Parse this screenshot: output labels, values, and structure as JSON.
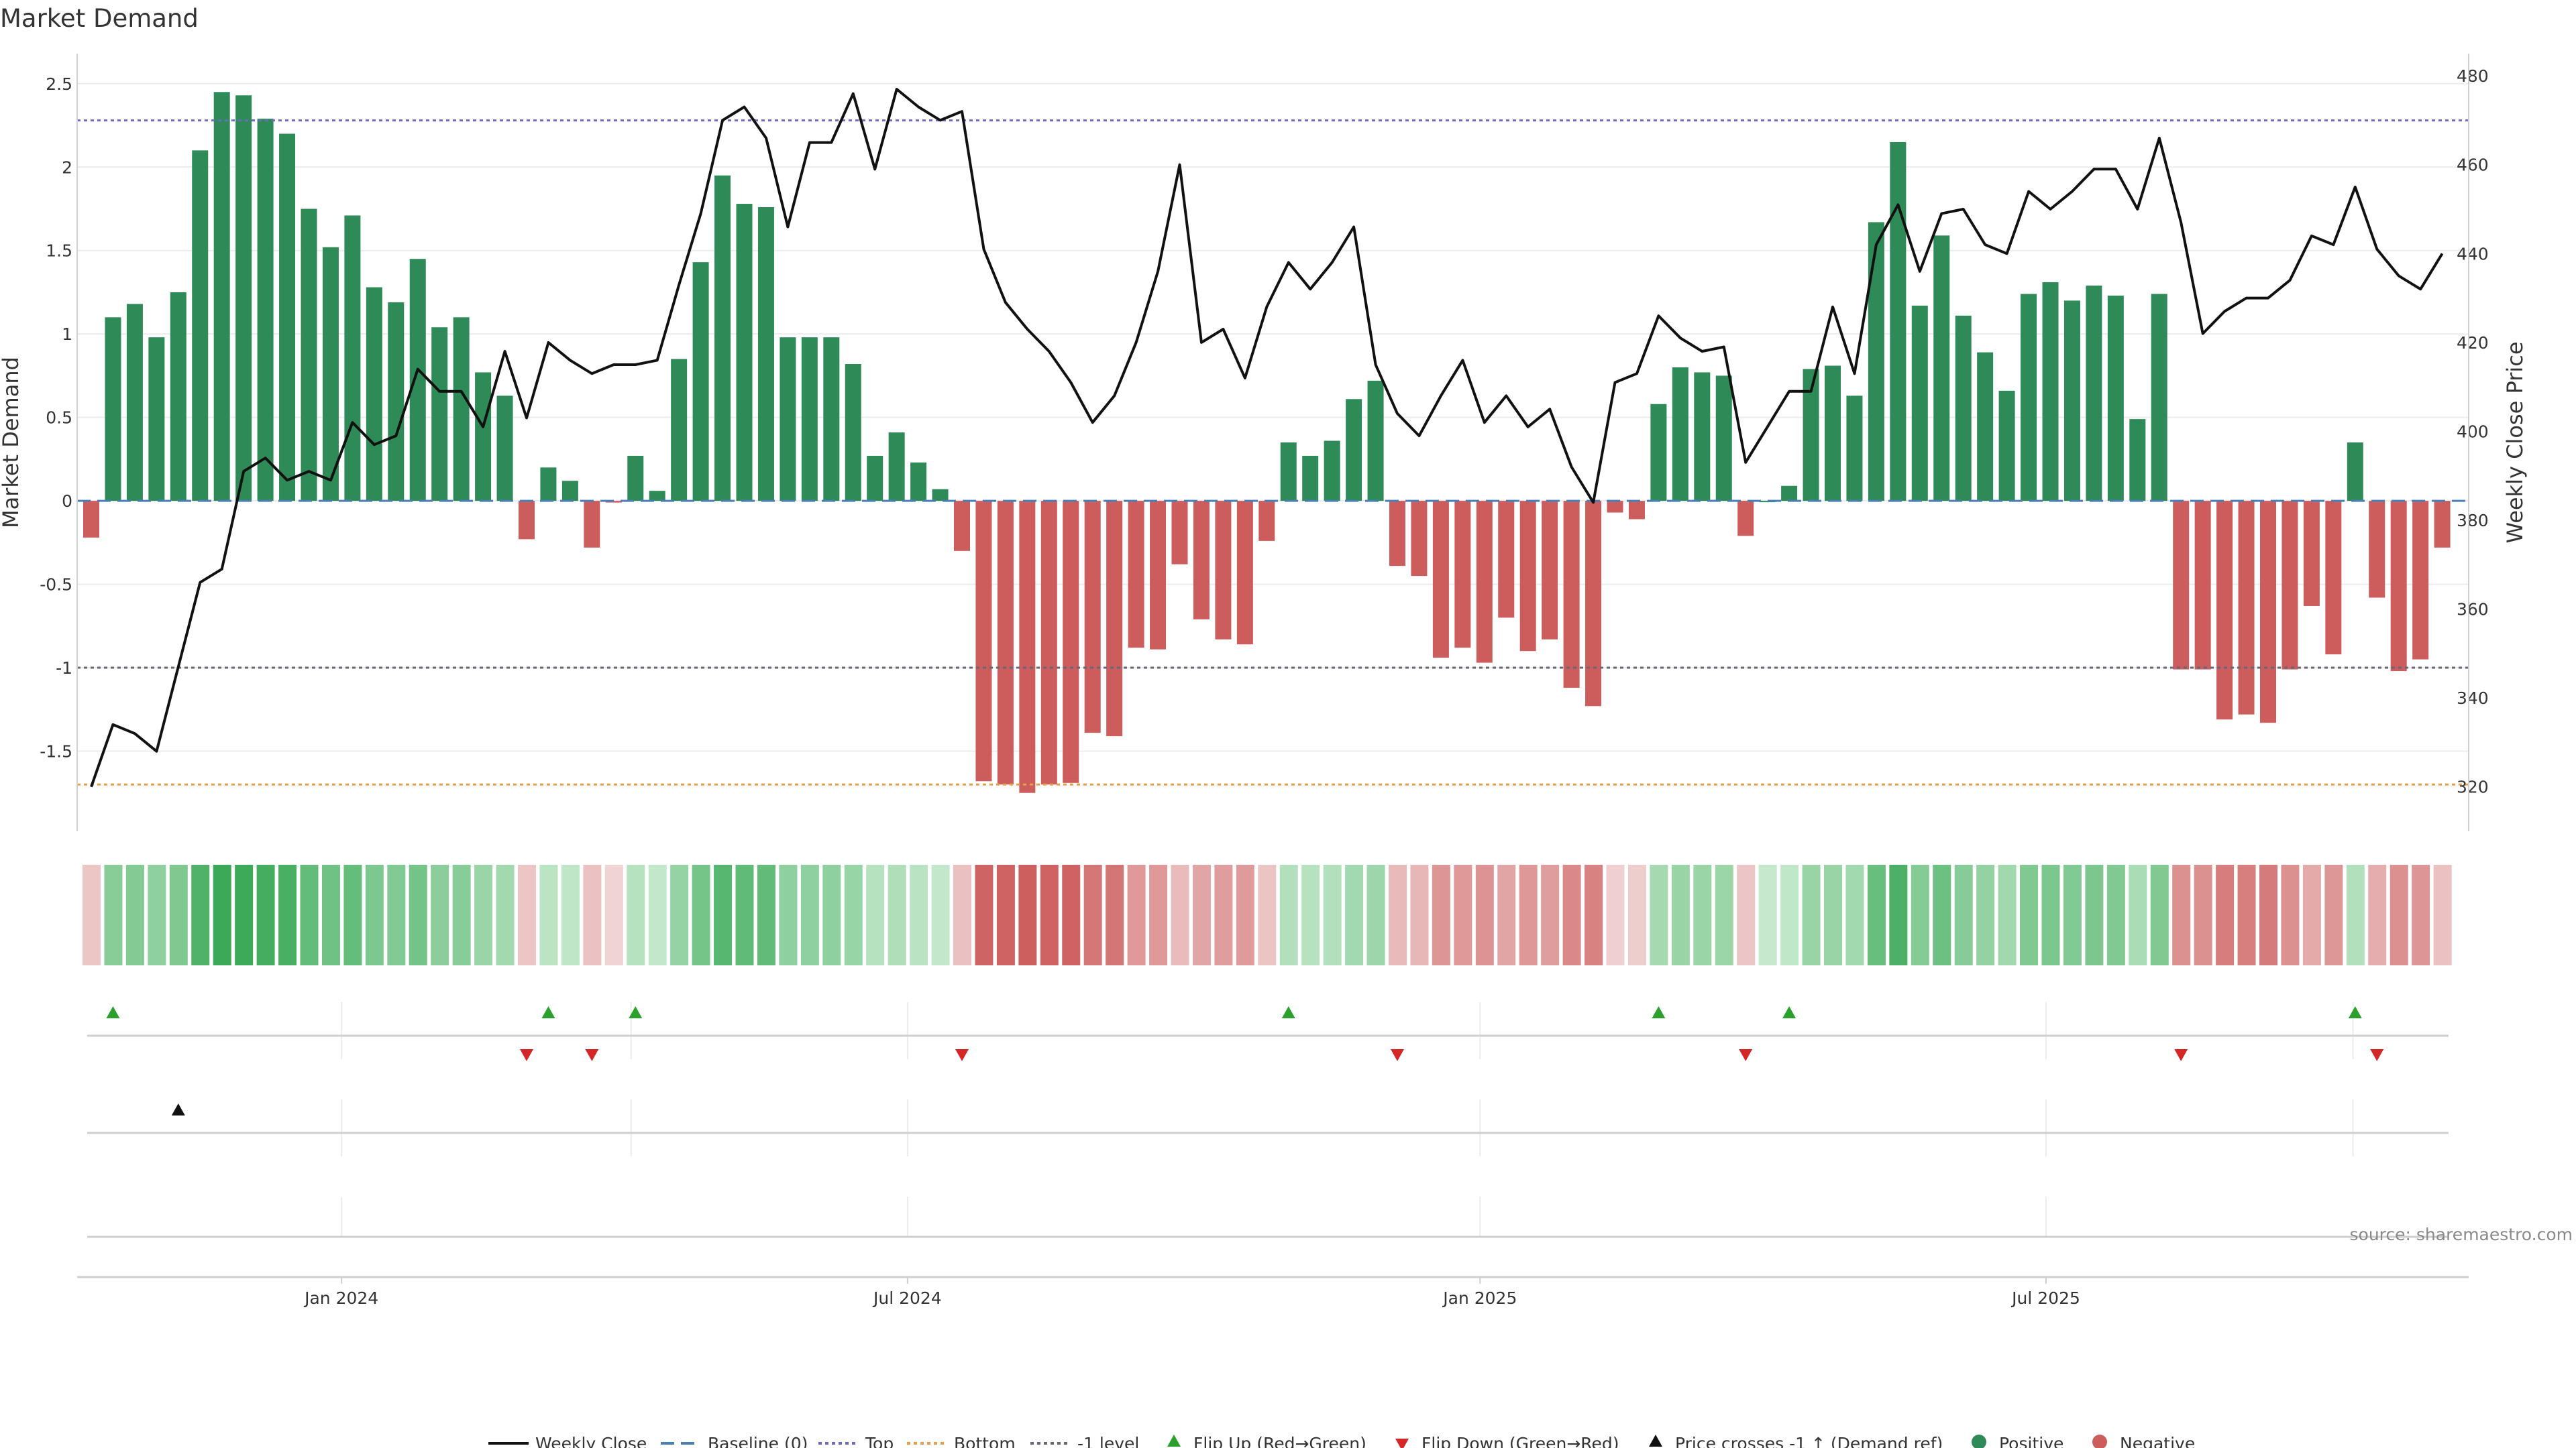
{
  "chart_data": {
    "type": "bar",
    "title": "Market Demand",
    "ylabel": "Market Demand",
    "y2label": "Weekly Close Price",
    "ylim": [
      -1.98,
      2.68
    ],
    "y2lim": [
      310,
      485
    ],
    "yticks": [
      "2.5",
      "2",
      "1.5",
      "1",
      "0.5",
      "0",
      "-0.5",
      "-1",
      "-1.5"
    ],
    "y2ticks": [
      "480",
      "460",
      "440",
      "420",
      "400",
      "380",
      "360",
      "340",
      "320"
    ],
    "xticks": [
      {
        "week": 11.5,
        "label": "Jan 2024"
      },
      {
        "week": 37.5,
        "label": "Jul 2024"
      },
      {
        "week": 63.8,
        "label": "Jan 2025"
      },
      {
        "week": 89.8,
        "label": "Jul 2025"
      }
    ],
    "levels": {
      "top": 2.28,
      "bottom": -1.7,
      "minus_one": -1.0,
      "baseline": 0
    },
    "demand": [
      -0.22,
      1.1,
      1.18,
      0.98,
      1.25,
      2.1,
      2.45,
      2.43,
      2.29,
      2.2,
      1.75,
      1.52,
      1.71,
      1.28,
      1.19,
      1.45,
      1.04,
      1.1,
      0.77,
      0.63,
      -0.23,
      0.2,
      0.12,
      -0.28,
      -0.01,
      0.27,
      0.06,
      0.85,
      1.43,
      1.95,
      1.78,
      1.76,
      0.98,
      0.98,
      0.98,
      0.82,
      0.27,
      0.41,
      0.23,
      0.07,
      -0.3,
      -1.68,
      -1.7,
      -1.75,
      -1.7,
      -1.69,
      -1.39,
      -1.41,
      -0.88,
      -0.89,
      -0.38,
      -0.71,
      -0.83,
      -0.86,
      -0.24,
      0.35,
      0.27,
      0.36,
      0.61,
      0.72,
      -0.39,
      -0.45,
      -0.94,
      -0.88,
      -0.97,
      -0.7,
      -0.9,
      -0.83,
      -1.12,
      -1.23,
      -0.07,
      -0.11,
      0.58,
      0.8,
      0.77,
      0.75,
      -0.21,
      0.0,
      0.09,
      0.79,
      0.81,
      0.63,
      1.67,
      2.15,
      1.17,
      1.59,
      1.11,
      0.89,
      0.66,
      1.24,
      1.31,
      1.2,
      1.29,
      1.23,
      0.49,
      1.24,
      -1.01,
      -1.01,
      -1.31,
      -1.28,
      -1.33,
      -1.01,
      -0.63,
      -0.92,
      0.35,
      -0.58,
      -1.02,
      -0.95,
      -0.28
    ],
    "weekly_close": [
      320,
      334,
      332,
      328,
      347,
      366,
      369,
      391,
      394,
      389,
      391,
      389,
      402,
      397,
      399,
      414,
      409,
      409,
      401,
      418,
      403,
      420,
      416,
      413,
      415,
      415,
      416,
      433,
      449,
      470,
      473,
      466,
      446,
      465,
      465,
      476,
      459,
      477,
      473,
      470,
      472,
      441,
      429,
      423,
      418,
      411,
      402,
      408,
      420,
      436,
      460,
      420,
      423,
      412,
      428,
      438,
      432,
      438,
      446,
      415,
      404,
      399,
      408,
      416,
      402,
      408,
      401,
      405,
      392,
      384,
      411,
      413,
      426,
      421,
      418,
      419,
      393,
      401,
      409,
      409,
      428,
      413,
      442,
      451,
      436,
      449,
      450,
      442,
      440,
      454,
      450,
      454,
      459,
      459,
      450,
      466,
      447,
      422,
      427,
      430,
      430,
      434,
      444,
      442,
      455,
      441,
      435,
      432,
      440
    ],
    "flip_up_weeks": [
      1,
      21,
      25,
      55,
      72,
      78,
      104
    ],
    "flip_down_weeks": [
      20,
      23,
      40,
      60,
      76,
      96,
      105
    ],
    "cross_up_weeks": [
      4
    ],
    "positive_color": "#2e8b57",
    "negative_color": "#cd5c5c",
    "flip_up_color": "#2ca02c",
    "flip_down_color": "#d62728",
    "level_colors": {
      "top": "#6b6bbf",
      "bottom": "#e6a04a",
      "minus_one": "#666677",
      "baseline": "#4a7fb5"
    },
    "legend": [
      "Weekly Close",
      "Baseline (0)",
      "Top",
      "Bottom",
      "-1 level",
      "Flip Up (Red→Green)",
      "Flip Down (Green→Red)",
      "Price crosses -1 ↑ (Demand ref)",
      "Positive",
      "Negative"
    ],
    "source": "source: sharemaestro.com"
  }
}
